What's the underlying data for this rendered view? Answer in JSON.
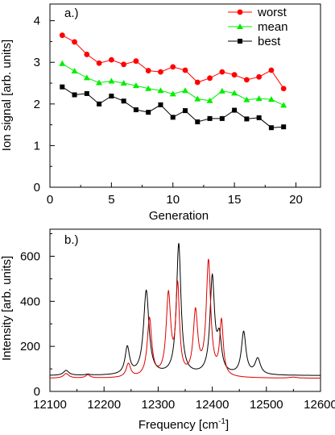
{
  "chart_data": [
    {
      "type": "line",
      "panel_label": "a.)",
      "title": "",
      "xlabel": "Generation",
      "ylabel": "Ion signal [arb. units]",
      "xlim": [
        0,
        22
      ],
      "ylim": [
        0,
        4.4
      ],
      "xticks": [
        "0",
        "5",
        "10",
        "15",
        "20"
      ],
      "yticks": [
        "0",
        "1",
        "2",
        "3",
        "4"
      ],
      "grid": false,
      "legend": "top-right",
      "x": [
        1,
        2,
        3,
        4,
        5,
        6,
        7,
        8,
        9,
        10,
        11,
        12,
        13,
        14,
        15,
        16,
        17,
        18,
        19
      ],
      "series": [
        {
          "name": "worst",
          "color": "#ff0000",
          "marker": "circle",
          "values": [
            3.65,
            3.49,
            3.19,
            2.98,
            3.06,
            2.95,
            3.03,
            2.8,
            2.77,
            2.89,
            2.81,
            2.52,
            2.62,
            2.77,
            2.7,
            2.58,
            2.65,
            2.81,
            2.37
          ]
        },
        {
          "name": "mean",
          "color": "#00ee00",
          "marker": "triangle",
          "values": [
            2.97,
            2.79,
            2.63,
            2.51,
            2.55,
            2.5,
            2.44,
            2.37,
            2.32,
            2.24,
            2.32,
            2.12,
            2.08,
            2.31,
            2.26,
            2.1,
            2.13,
            2.11,
            1.97
          ]
        },
        {
          "name": "best",
          "color": "#000000",
          "marker": "square",
          "values": [
            2.41,
            2.22,
            2.25,
            2.0,
            2.19,
            2.07,
            1.86,
            1.8,
            1.98,
            1.68,
            1.84,
            1.57,
            1.65,
            1.65,
            1.85,
            1.64,
            1.67,
            1.43,
            1.45
          ]
        }
      ]
    },
    {
      "type": "line",
      "panel_label": "b.)",
      "title": "",
      "xlabel": "Frequency [cm",
      "xlabel_sup": "-1",
      "xlabel_end": "]",
      "ylabel": "Intensity [arb. units]",
      "xlim": [
        12100,
        12600
      ],
      "ylim": [
        0,
        720
      ],
      "xticks": [
        "12100",
        "12200",
        "12300",
        "12400",
        "12500",
        "12600"
      ],
      "yticks": [
        "0",
        "200",
        "400",
        "600"
      ],
      "grid": false,
      "series": [
        {
          "color": "#000000",
          "baseline": 70,
          "peaks": [
            [
              12130,
              22,
              6
            ],
            [
              12170,
              4,
              5
            ],
            [
              12243,
              120,
              5
            ],
            [
              12278,
              372,
              6
            ],
            [
              12338,
              580,
              5
            ],
            [
              12400,
              425,
              5
            ],
            [
              12413,
              148,
              5
            ],
            [
              12458,
              188,
              5
            ],
            [
              12484,
              70,
              6
            ]
          ]
        },
        {
          "color": "#dd0000",
          "baseline": 58,
          "peaks": [
            [
              12130,
              20,
              6
            ],
            [
              12170,
              14,
              5
            ],
            [
              12245,
              60,
              5
            ],
            [
              12284,
              258,
              5
            ],
            [
              12319,
              358,
              5
            ],
            [
              12336,
              392,
              4
            ],
            [
              12369,
              280,
              5
            ],
            [
              12393,
              508,
              5
            ],
            [
              12417,
              240,
              4
            ],
            [
              12550,
              4,
              8
            ]
          ]
        }
      ]
    }
  ]
}
